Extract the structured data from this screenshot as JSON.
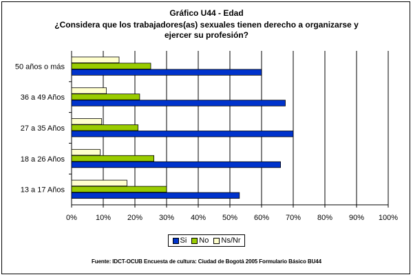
{
  "chart_data": {
    "type": "bar",
    "orientation": "horizontal",
    "title": "Gráfico U44 - Edad",
    "subtitle": "¿Considera que los trabajadores(as) sexuales tienen derecho a organizarse y ejercer su profesión?",
    "categories": [
      "50 años o más",
      "36 a 49 Años",
      "27 a 35 Años",
      "18 a 26 Años",
      "13 a 17 Años"
    ],
    "series": [
      {
        "name": "Ns/Nr",
        "color": "#ffffcc",
        "values": [
          15,
          11,
          9.5,
          9,
          17.5
        ]
      },
      {
        "name": "No",
        "color": "#99cc00",
        "values": [
          25,
          21.5,
          21,
          26,
          30
        ]
      },
      {
        "name": "Si",
        "color": "#0033cc",
        "values": [
          60,
          67.5,
          70,
          66,
          53
        ]
      }
    ],
    "xlim": [
      0,
      100
    ],
    "xticks": [
      "0%",
      "10%",
      "20%",
      "30%",
      "40%",
      "50%",
      "60%",
      "70%",
      "80%",
      "90%",
      "100%"
    ],
    "grid": true,
    "legend_position": "bottom"
  },
  "legend": [
    {
      "label": "Si",
      "color": "#0033cc"
    },
    {
      "label": "No",
      "color": "#99cc00"
    },
    {
      "label": "Ns/Nr",
      "color": "#ffffcc"
    }
  ],
  "source": "Fuente: IDCT-OCUB Encuesta de cultura: Ciudad de Bogotá 2005 Formulario Básico BU44"
}
